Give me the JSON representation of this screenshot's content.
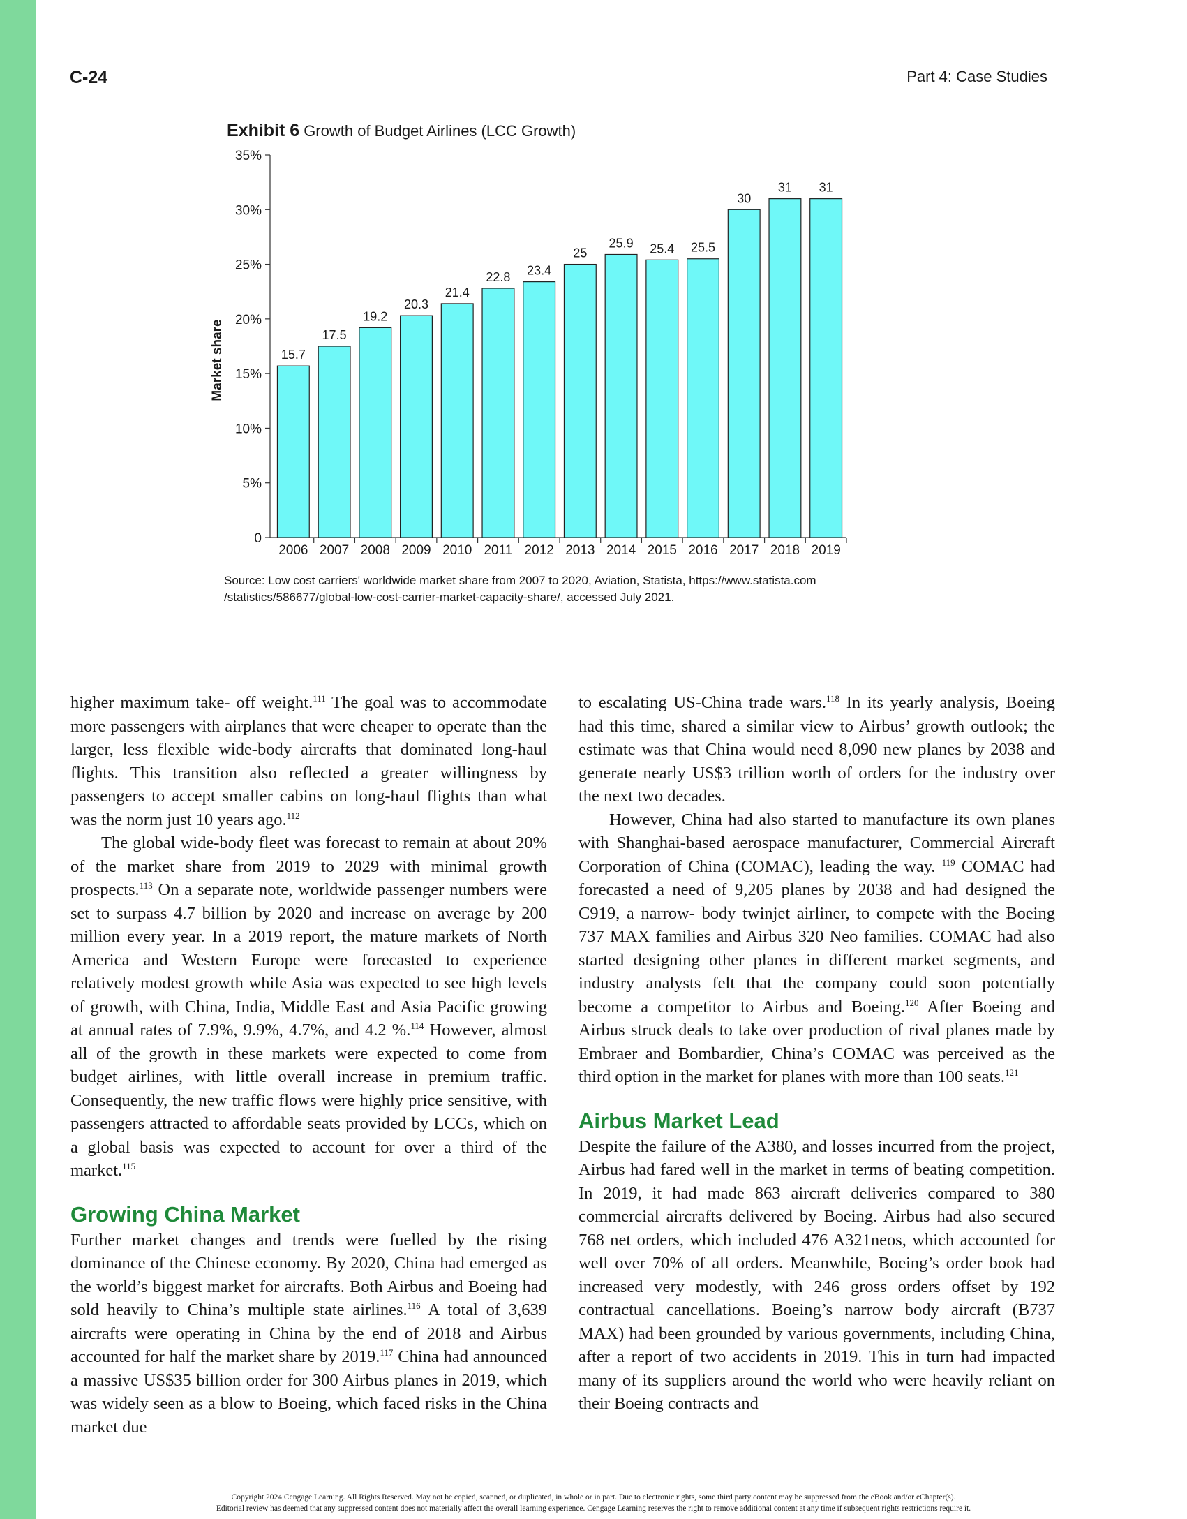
{
  "header": {
    "page_number": "C-24",
    "section": "Part 4: Case Studies"
  },
  "exhibit": {
    "label": "Exhibit 6",
    "title": "Growth of Budget Airlines (LCC Growth)"
  },
  "chart_data": {
    "type": "bar",
    "categories": [
      "2006",
      "2007",
      "2008",
      "2009",
      "2010",
      "2011",
      "2012",
      "2013",
      "2014",
      "2015",
      "2016",
      "2017",
      "2018",
      "2019"
    ],
    "values": [
      15.7,
      17.5,
      19.2,
      20.3,
      21.4,
      22.8,
      23.4,
      25,
      25.9,
      25.4,
      25.5,
      30,
      31,
      31
    ],
    "data_labels": [
      "15.7",
      "17.5",
      "19.2",
      "20.3",
      "21.4",
      "22.8",
      "23.4",
      "25",
      "25.9",
      "25.4",
      "25.5",
      "30",
      "31",
      "31"
    ],
    "ylabel": "Market share",
    "xlabel": "",
    "ylim": [
      0,
      35
    ],
    "yticks": [
      0,
      5,
      10,
      15,
      20,
      25,
      30,
      35
    ],
    "ytick_labels": [
      "0",
      "5%",
      "10%",
      "15%",
      "20%",
      "25%",
      "30%",
      "35%"
    ],
    "bar_color": "#6ff8f8",
    "grid": false
  },
  "source": {
    "line1": "Source: Low cost carriers' worldwide market share from 2007 to 2020, Aviation, Statista, https://www.statista.com",
    "line2": "/statistics/586677/global-low-cost-carrier-market-capacity-share/, accessed July 2021."
  },
  "body": {
    "left": {
      "p1": "higher maximum take- off weight.",
      "p1_ref": "111",
      "p1b": " The goal was to accommodate more passengers with airplanes that were cheaper to operate than the larger, less flexible wide-body aircrafts that dominated long-haul flights. This transition also reflected a greater willingness by passengers to accept smaller cabins on long-haul flights than what was the norm just 10 years ago.",
      "p1b_ref": "112",
      "p2": "The global wide-body fleet was forecast to remain at about 20% of the market share from 2019 to 2029 with minimal growth prospects.",
      "p2_ref": "113",
      "p2b": " On a separate note, worldwide passenger numbers were set to surpass 4.7 billion by 2020 and increase on average by 200 million every year. In a 2019 report, the mature markets of North America and Western Europe were forecasted to experience relatively modest growth while Asia was expected to see high levels of growth, with China, India, Middle East and Asia Pacific growing at annual rates of 7.9%, 9.9%, 4.7%, and 4.2 %.",
      "p2b_ref": "114",
      "p2c": " However, almost all of the growth in these markets were expected to come from budget airlines, with little overall increase in premium traffic. Consequently, the new traffic flows were highly price sensitive, with passengers attracted to affordable seats provided by LCCs, which on a global basis was expected to account for over a third of the market.",
      "p2c_ref": "115",
      "h_china": "Growing China Market",
      "p3": "Further market changes and trends were fuelled by the rising dominance of the Chinese economy. By 2020, China had emerged as the world’s biggest market for aircrafts. Both Airbus and Boeing had sold heavily to China’s multiple state airlines.",
      "p3_ref": "116",
      "p3b": " A total of 3,639 aircrafts were operating in China by the end of 2018 and Airbus accounted for half the market share by 2019.",
      "p3b_ref": "117",
      "p3c": " China had announced a massive US$35 billion order for 300 Airbus planes in 2019, which was widely seen as a blow to Boeing, which faced risks in the China market due"
    },
    "right": {
      "p1": "to escalating US-China trade wars.",
      "p1_ref": "118",
      "p1b": " In its yearly analysis, Boeing had this time, shared a similar view to Airbus’ growth outlook; the estimate was that China would need 8,090 new planes by 2038 and generate nearly US$3 trillion worth of orders for the industry over the next two decades.",
      "p2": "However, China had also started to manufacture its own planes with Shanghai-based aerospace manufacturer, Commercial Aircraft Corporation of China (COMAC), leading the way. ",
      "p2_ref": "119",
      "p2b": " COMAC had forecasted a need of 9,205 planes by 2038 and had designed the C919, a narrow- body twinjet airliner, to compete with the Boeing 737 MAX families and Airbus 320 Neo families. COMAC had also started designing other planes in different market segments, and industry analysts felt that the company could soon potentially become a competitor to Airbus and Boeing.",
      "p2b_ref": "120",
      "p2c": " After Boeing and Airbus struck deals to take over production of rival planes made by Embraer and Bombardier, China’s COMAC was perceived as the third option in the market for planes with more than 100 seats.",
      "p2c_ref": "121",
      "h_airbus": "Airbus Market Lead",
      "p3": "Despite the failure of the A380, and losses incurred from the project, Airbus had fared well in the market in terms of beating competition. In 2019, it had made 863 aircraft deliveries compared to 380 commercial aircrafts delivered by Boeing. Airbus had also secured 768 net orders, which included 476 A321neos, which accounted for well over 70% of all orders. Meanwhile, Boeing’s order book had increased very modestly, with 246 gross orders offset by 192 contractual cancellations. Boeing’s narrow body aircraft (B737 MAX) had been grounded by various governments, including China, after a report of two accidents in 2019. This in turn had impacted many of its suppliers around the world who were heavily reliant on their Boeing contracts and"
    }
  },
  "footer": {
    "line1": "Copyright 2024 Cengage Learning. All Rights Reserved. May not be copied, scanned, or duplicated, in whole or in part. Due to electronic rights, some third party content may be suppressed from the eBook and/or eChapter(s).",
    "line2": "Editorial review has deemed that any suppressed content does not materially affect the overall learning experience. Cengage Learning reserves the right to remove additional content at any time if subsequent rights restrictions require it."
  }
}
